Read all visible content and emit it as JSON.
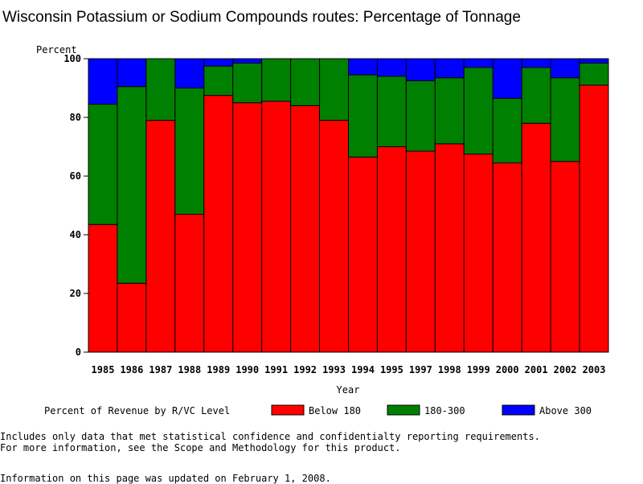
{
  "chart_data": {
    "type": "bar",
    "stacked": true,
    "title": "Wisconsin Potassium or Sodium Compounds routes: Percentage of Tonnage",
    "xlabel": "Year",
    "ylabel": "Percent",
    "ylim": [
      0,
      100
    ],
    "yticks": [
      "0",
      "20",
      "40",
      "60",
      "80",
      "100"
    ],
    "categories": [
      "1985",
      "1986",
      "1987",
      "1988",
      "1989",
      "1990",
      "1991",
      "1992",
      "1993",
      "1994",
      "1995",
      "1997",
      "1998",
      "1999",
      "2000",
      "2001",
      "2002",
      "2003"
    ],
    "series": [
      {
        "name": "Below 180",
        "color": "#ff0000",
        "values": [
          43.5,
          23.5,
          79.0,
          47.0,
          87.5,
          85.0,
          85.5,
          84.0,
          79.0,
          66.5,
          70.0,
          68.5,
          71.0,
          67.5,
          64.5,
          78.0,
          65.0,
          91.0
        ]
      },
      {
        "name": "180-300",
        "color": "#008000",
        "values": [
          41.0,
          67.0,
          21.0,
          43.0,
          10.0,
          13.5,
          14.5,
          16.0,
          21.0,
          28.0,
          24.0,
          24.0,
          22.5,
          29.5,
          22.0,
          19.0,
          28.5,
          7.5
        ]
      },
      {
        "name": "Above 300",
        "color": "#0000ff",
        "values": [
          15.5,
          9.5,
          0.0,
          10.0,
          2.5,
          1.5,
          0.0,
          0.0,
          0.0,
          5.5,
          6.0,
          7.5,
          6.5,
          3.0,
          13.5,
          3.0,
          6.5,
          1.5
        ]
      }
    ],
    "legend": {
      "title": "Percent of Revenue by R/VC Level",
      "position": "bottom"
    },
    "grid": false
  },
  "notes": {
    "line1": "Includes only data that met statistical confidence and confidentialty reporting requirements.",
    "line2": "For more information, see the Scope and Methodology for this product.",
    "updated": "Information on this page was updated on February 1, 2008."
  }
}
